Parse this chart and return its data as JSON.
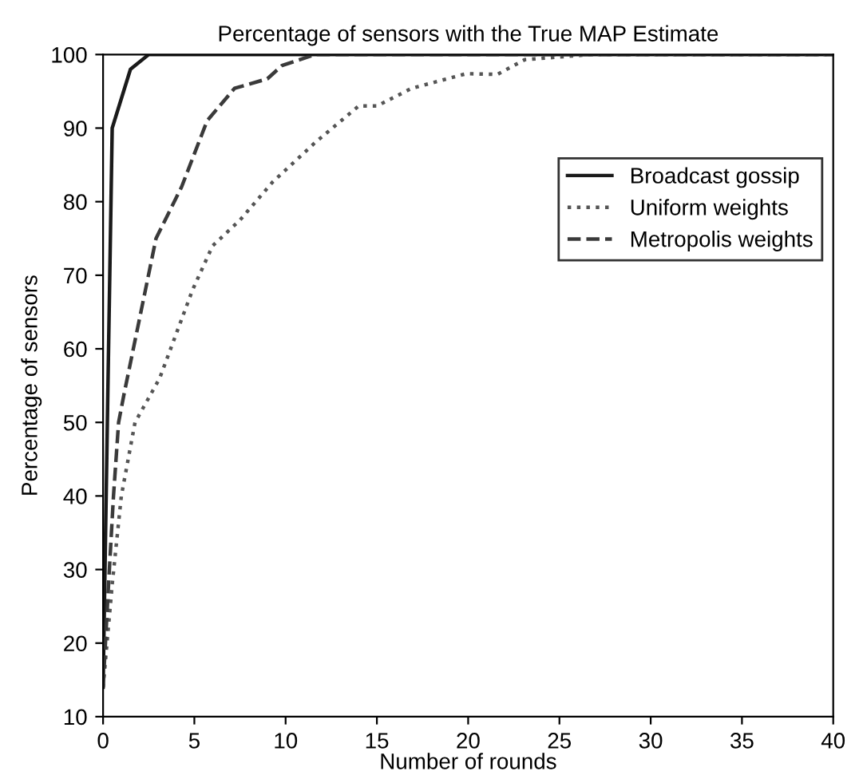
{
  "chart_data": {
    "type": "line",
    "title": "Percentage of sensors with the True MAP Estimate",
    "xlabel": "Number of rounds",
    "ylabel": "Percentage of sensors",
    "xlim": [
      0,
      40
    ],
    "ylim": [
      10,
      100
    ],
    "xticks": [
      0,
      5,
      10,
      15,
      20,
      25,
      30,
      35,
      40
    ],
    "yticks": [
      10,
      20,
      30,
      40,
      50,
      60,
      70,
      80,
      90,
      100
    ],
    "grid": false,
    "legend": "top right",
    "series": [
      {
        "name": "Broadcast gossip",
        "color": "#1a1a1a",
        "line_style": "solid",
        "x": [
          0,
          0.3,
          0.5,
          1.5,
          2.5,
          3,
          40
        ],
        "values": [
          14,
          60,
          90,
          98,
          100,
          100,
          100
        ]
      },
      {
        "name": "Uniform weights",
        "color": "#555555",
        "line_style": "dotted",
        "x": [
          0,
          0.5,
          1,
          1.75,
          3.1,
          4.9,
          6,
          7.5,
          9.3,
          11.6,
          14,
          15,
          16.9,
          19.9,
          21.6,
          23.1,
          26.7,
          40
        ],
        "values": [
          14,
          28,
          40,
          50,
          56,
          68,
          74,
          77.5,
          82.7,
          88,
          93,
          93,
          95.4,
          97.4,
          97.3,
          99.3,
          100,
          100
        ]
      },
      {
        "name": "Metropolis weights",
        "color": "#3a3a3a",
        "line_style": "dashed",
        "x": [
          0,
          0.3,
          0.57,
          0.85,
          1.16,
          2.9,
          4.3,
          5.7,
          7.2,
          9,
          9.8,
          11.6,
          40
        ],
        "values": [
          14,
          28,
          40,
          50,
          54,
          75,
          82,
          91,
          95.4,
          96.7,
          98.5,
          100,
          100
        ]
      }
    ]
  }
}
